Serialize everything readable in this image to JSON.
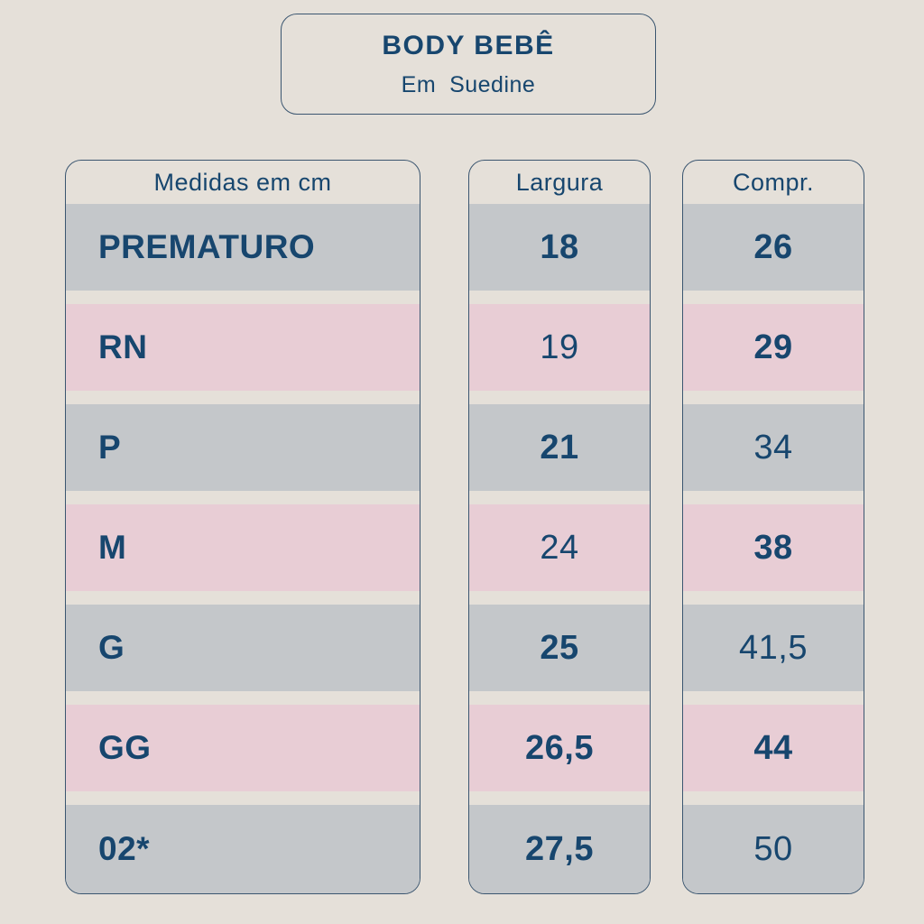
{
  "title_card": {
    "title": "BODY BEBÊ",
    "subtitle": "Em  Suedine"
  },
  "chart_data": {
    "type": "table",
    "title": "BODY BEBÊ",
    "subtitle": "Em  Suedine",
    "columns": [
      "Medidas em cm",
      "Largura",
      "Compr."
    ],
    "rows": [
      [
        "PREMATURO",
        "18",
        "26"
      ],
      [
        "RN",
        "19",
        "29"
      ],
      [
        "P",
        "21",
        "34"
      ],
      [
        "M",
        "24",
        "38"
      ],
      [
        "G",
        "25",
        "41,5"
      ],
      [
        "GG",
        "26,5",
        "44"
      ],
      [
        "02*",
        "27,5",
        "50"
      ]
    ],
    "units": "cm",
    "row_tone_pattern": [
      "gray",
      "pink",
      "gray",
      "pink",
      "gray",
      "pink",
      "gray"
    ]
  },
  "colors": {
    "background": "#e5e0d9",
    "row_gray": "#c4c7ca",
    "row_pink": "#e8cdd5",
    "text_navy": "#17466e",
    "border_navy": "#3b5670"
  }
}
